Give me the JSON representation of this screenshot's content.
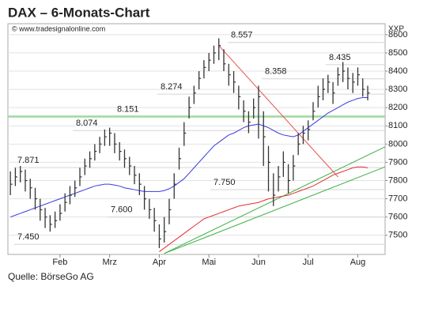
{
  "chart_data": {
    "type": "ohlc",
    "title": "DAX – 6-Monats-Chart",
    "watermark": "© www.tradesignalonline.com",
    "y_axis_label": "XXP",
    "source": "Quelle: BörseGo AG",
    "color": "#333333",
    "grid": true,
    "xlim": [
      -0.5,
      75.5
    ],
    "ylim": [
      7395,
      8660
    ],
    "yticks": [
      7500,
      7600,
      7700,
      7800,
      7900,
      8000,
      8100,
      8200,
      8300,
      8400,
      8500,
      8600
    ],
    "xticks": [
      {
        "value": 10,
        "label": "Feb"
      },
      {
        "value": 20,
        "label": "Mrz"
      },
      {
        "value": 30,
        "label": "Apr"
      },
      {
        "value": 40,
        "label": "Mai"
      },
      {
        "value": 50,
        "label": "Jun"
      },
      {
        "value": 60,
        "label": "Jul"
      },
      {
        "value": 70,
        "label": "Aug"
      }
    ],
    "high": [
      7850,
      7870,
      7880,
      7860,
      7810,
      7760,
      7700,
      7650,
      7610,
      7630,
      7670,
      7730,
      7770,
      7800,
      7870,
      7920,
      7960,
      8000,
      8040,
      8080,
      8090,
      8060,
      8010,
      7970,
      7930,
      7880,
      7840,
      7770,
      7700,
      7650,
      7560,
      7600,
      7700,
      7840,
      7980,
      8120,
      8260,
      8320,
      8400,
      8460,
      8500,
      8540,
      8580,
      8520,
      8440,
      8400,
      8320,
      8240,
      8180,
      8250,
      8320,
      8180,
      7990,
      7840,
      7880,
      7960,
      7890,
      7940,
      8060,
      8100,
      8130,
      8230,
      8320,
      8360,
      8380,
      8340,
      8420,
      8450,
      8420,
      8390,
      8420,
      8360,
      8320
    ],
    "low": [
      7720,
      7770,
      7790,
      7740,
      7700,
      7640,
      7580,
      7540,
      7520,
      7540,
      7580,
      7630,
      7670,
      7710,
      7770,
      7830,
      7870,
      7910,
      7950,
      7990,
      7990,
      7950,
      7910,
      7870,
      7830,
      7780,
      7720,
      7640,
      7590,
      7520,
      7430,
      7460,
      7560,
      7700,
      7860,
      7990,
      8140,
      8220,
      8300,
      8360,
      8400,
      8440,
      8460,
      8400,
      8320,
      8280,
      8190,
      8120,
      8060,
      8140,
      8030,
      7880,
      7740,
      7660,
      7740,
      7820,
      7730,
      7800,
      7940,
      8000,
      8020,
      8130,
      8200,
      8240,
      8280,
      8220,
      8320,
      8340,
      8300,
      8280,
      8320,
      8260,
      8240
    ],
    "close": [
      7780,
      7820,
      7850,
      7800,
      7760,
      7700,
      7640,
      7600,
      7560,
      7580,
      7620,
      7680,
      7720,
      7760,
      7820,
      7880,
      7920,
      7960,
      8000,
      8040,
      8060,
      8000,
      7960,
      7920,
      7880,
      7830,
      7780,
      7700,
      7640,
      7580,
      7480,
      7520,
      7640,
      7780,
      7920,
      8060,
      8200,
      8280,
      8360,
      8420,
      8460,
      8500,
      8540,
      8440,
      8380,
      8340,
      8260,
      8180,
      8120,
      8200,
      8260,
      8040,
      7900,
      7720,
      7820,
      7900,
      7800,
      7880,
      8000,
      8060,
      8080,
      8180,
      8260,
      8300,
      8340,
      8280,
      8380,
      8400,
      8360,
      8340,
      8380,
      8300,
      8280
    ],
    "lines": [
      {
        "color": "#3a3ae0",
        "values": [
          7600,
          7610,
          7620,
          7630,
          7640,
          7650,
          7660,
          7670,
          7680,
          7690,
          7700,
          7710,
          7720,
          7730,
          7740,
          7750,
          7760,
          7770,
          7775,
          7780,
          7780,
          7775,
          7770,
          7760,
          7755,
          7750,
          7745,
          7740,
          7740,
          7740,
          7740,
          7745,
          7755,
          7770,
          7790,
          7810,
          7840,
          7870,
          7900,
          7930,
          7960,
          7990,
          8010,
          8030,
          8050,
          8060,
          8075,
          8090,
          8100,
          8105,
          8110,
          8100,
          8090,
          8075,
          8060,
          8050,
          8045,
          8040,
          8050,
          8070,
          8090,
          8110,
          8130,
          8150,
          8170,
          8185,
          8200,
          8215,
          8230,
          8240,
          8250,
          8255,
          8255
        ]
      },
      {
        "color": "#e03030",
        "values": [
          null,
          null,
          null,
          null,
          null,
          null,
          null,
          null,
          null,
          null,
          null,
          null,
          null,
          null,
          null,
          null,
          null,
          null,
          null,
          null,
          null,
          null,
          null,
          null,
          null,
          null,
          null,
          null,
          null,
          null,
          7410,
          7430,
          7450,
          7470,
          7490,
          7510,
          7530,
          7550,
          7570,
          7590,
          7600,
          7610,
          7620,
          7630,
          7640,
          7650,
          7660,
          7665,
          7670,
          7675,
          7680,
          7690,
          7700,
          7705,
          7710,
          7715,
          7720,
          7730,
          7740,
          7750,
          7760,
          7770,
          7785,
          7800,
          7815,
          7830,
          7840,
          7850,
          7860,
          7870,
          7875,
          7875,
          7870
        ]
      }
    ],
    "trendlines": [
      {
        "color": "#3cb043",
        "x": [
          31,
          75.5
        ],
        "y": [
          7400,
          7985
        ]
      },
      {
        "color": "#3cb043",
        "x": [
          31,
          75.5
        ],
        "y": [
          7400,
          7875
        ]
      },
      {
        "color": "#e85050",
        "x": [
          42,
          66
        ],
        "y": [
          8540,
          7820
        ]
      }
    ],
    "levels": [
      {
        "value": 8557,
        "label": "8.557"
      },
      {
        "value": 8435,
        "label": "8.435"
      },
      {
        "value": 8358,
        "label": "8.358"
      },
      {
        "value": 8274,
        "label": "8.274"
      },
      {
        "value": 8151,
        "label": "8.151",
        "color": "#9ed89e"
      },
      {
        "value": 8074,
        "label": "8.074"
      },
      {
        "value": 7871,
        "label": "7.871"
      },
      {
        "value": 7750,
        "label": "7.750"
      },
      {
        "value": 7600,
        "label": "7.600"
      },
      {
        "value": 7450,
        "label": "7.450"
      }
    ]
  }
}
